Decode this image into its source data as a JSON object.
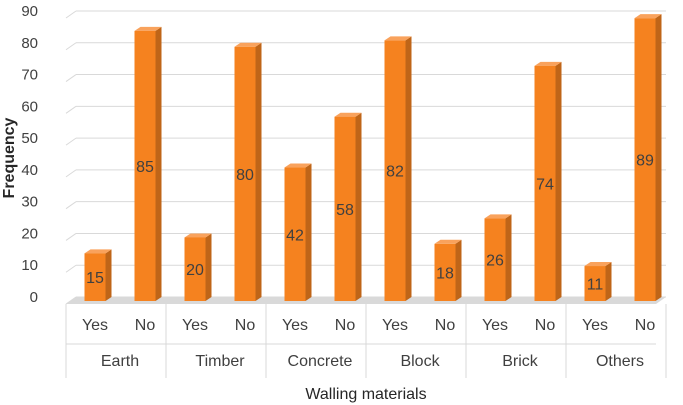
{
  "chart_data": {
    "type": "bar",
    "title": "",
    "xlabel": "Walling materials",
    "ylabel": "Frequency",
    "ylim": [
      0,
      90
    ],
    "y_ticks": [
      0,
      10,
      20,
      30,
      40,
      50,
      60,
      70,
      80,
      90
    ],
    "grid": true,
    "bar_color": "#F5821F",
    "groups": [
      "Earth",
      "Timber",
      "Concrete",
      "Block",
      "Brick",
      "Others"
    ],
    "subcategories": [
      "Yes",
      "No"
    ],
    "values": [
      [
        15,
        85
      ],
      [
        20,
        80
      ],
      [
        42,
        58
      ],
      [
        82,
        18
      ],
      [
        26,
        74
      ],
      [
        11,
        89
      ]
    ]
  }
}
